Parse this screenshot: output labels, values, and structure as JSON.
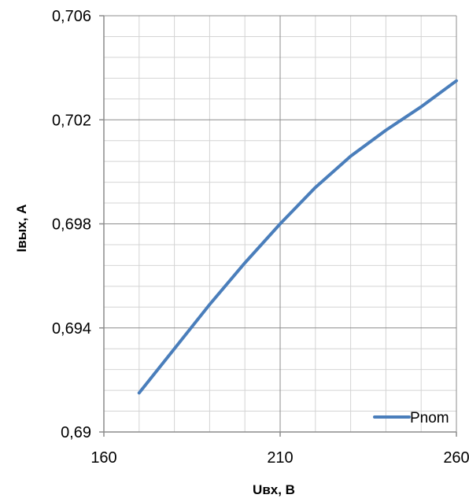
{
  "chart_data": {
    "type": "line",
    "title": "",
    "xlabel": "Uвх, В",
    "ylabel": "Iвых, А",
    "xlim": [
      160,
      260
    ],
    "ylim": [
      0.69,
      0.706
    ],
    "x_major_ticks": [
      160,
      210,
      260
    ],
    "x_tick_labels": [
      "160",
      "210",
      "260"
    ],
    "y_major_ticks": [
      0.69,
      0.694,
      0.698,
      0.702,
      0.706
    ],
    "y_tick_labels": [
      "0,69",
      "0,694",
      "0,698",
      "0,702",
      "0,706"
    ],
    "x_minor_step": 10,
    "y_minor_step": 0.0008,
    "grid": true,
    "legend_position": "bottom-right",
    "series": [
      {
        "name": "Pnom",
        "color": "#4a7ebb",
        "x": [
          170,
          180,
          190,
          200,
          210,
          220,
          230,
          240,
          250,
          260
        ],
        "y": [
          0.6915,
          0.6932,
          0.6949,
          0.6965,
          0.698,
          0.6994,
          0.7006,
          0.7016,
          0.7025,
          0.7035
        ]
      }
    ]
  }
}
